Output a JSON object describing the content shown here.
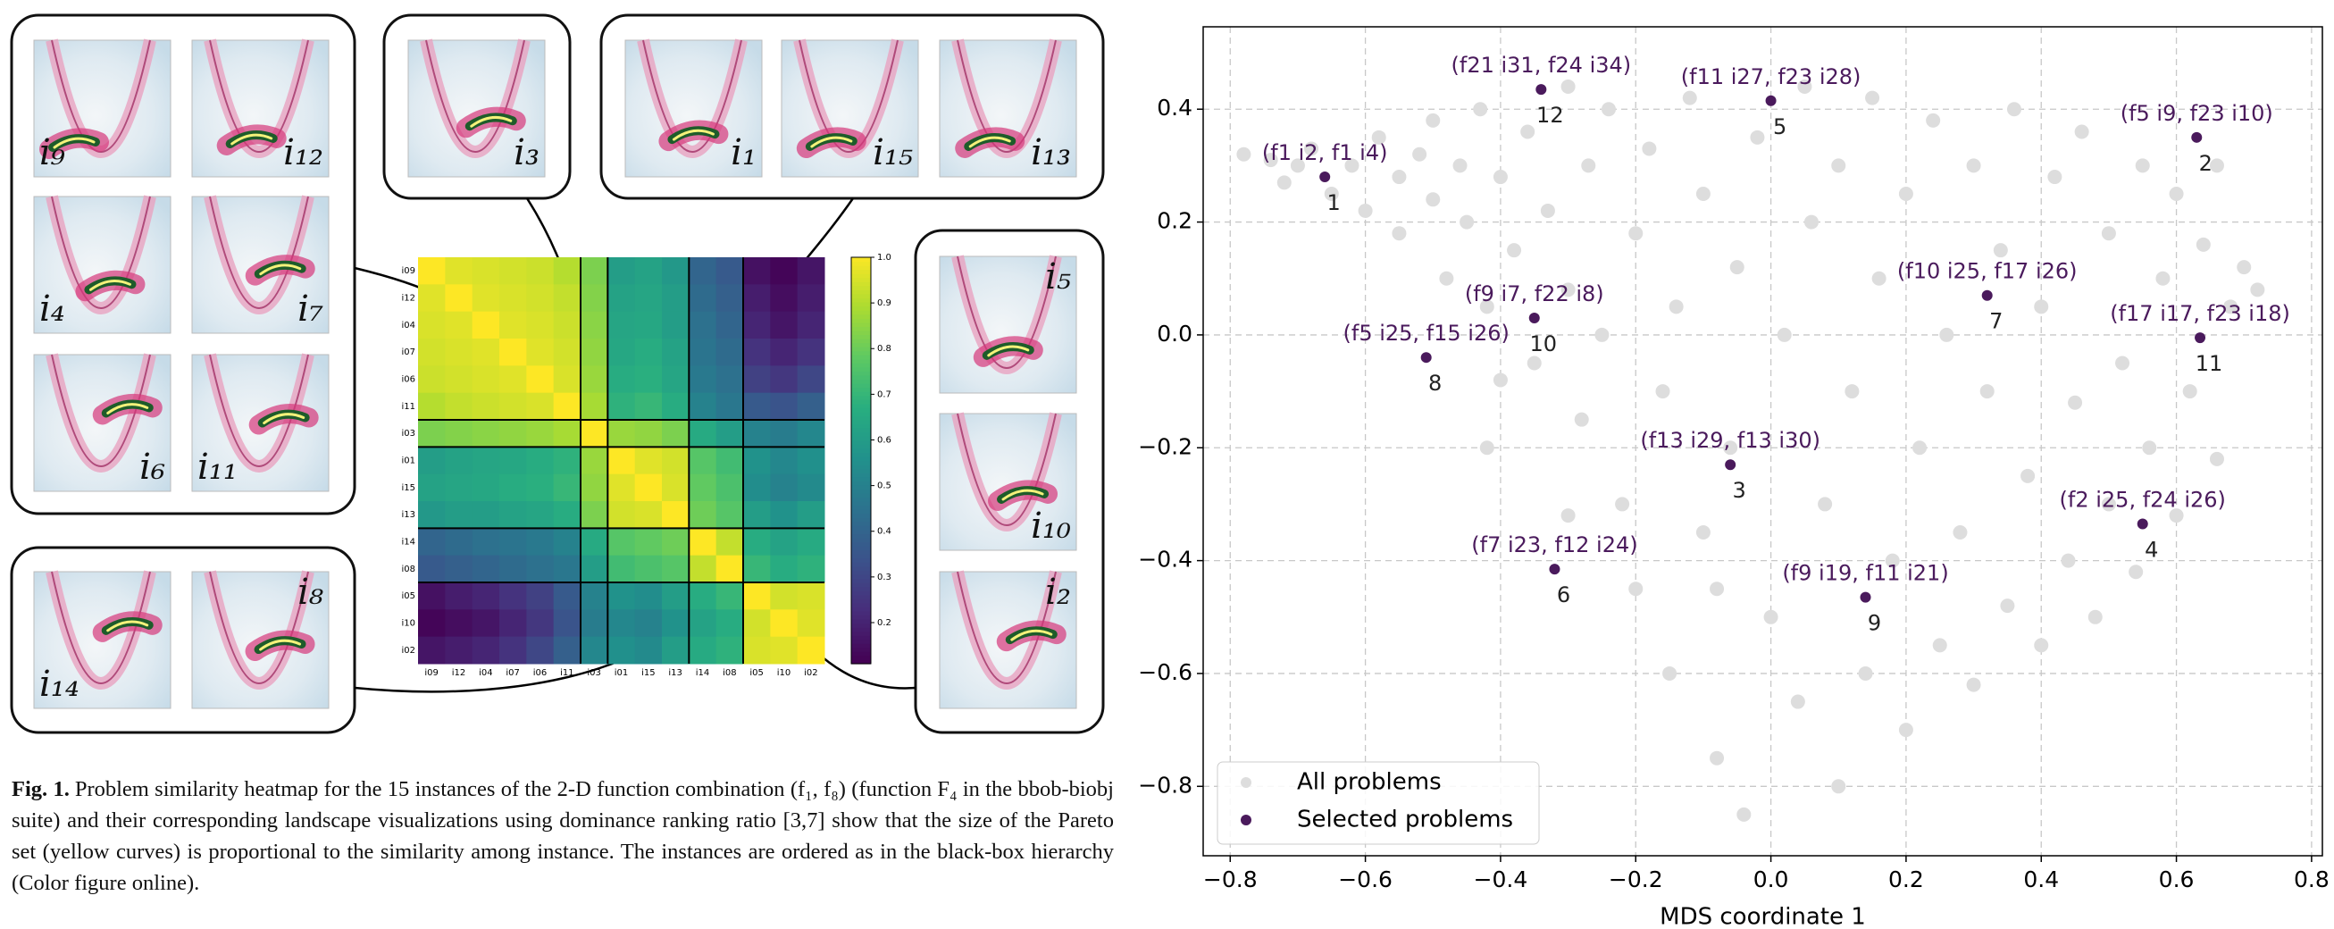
{
  "figure": {
    "heatmap": {
      "labels": [
        "i09",
        "i12",
        "i04",
        "i07",
        "i06",
        "i11",
        "i03",
        "i01",
        "i15",
        "i13",
        "i14",
        "i08",
        "i05",
        "i10",
        "i02"
      ],
      "values": [
        [
          1.0,
          0.96,
          0.95,
          0.94,
          0.93,
          0.9,
          0.82,
          0.6,
          0.62,
          0.58,
          0.4,
          0.36,
          0.15,
          0.12,
          0.16
        ],
        [
          0.96,
          1.0,
          0.96,
          0.95,
          0.94,
          0.92,
          0.83,
          0.62,
          0.63,
          0.6,
          0.42,
          0.38,
          0.18,
          0.14,
          0.18
        ],
        [
          0.95,
          0.96,
          1.0,
          0.96,
          0.95,
          0.93,
          0.84,
          0.63,
          0.64,
          0.6,
          0.44,
          0.4,
          0.2,
          0.16,
          0.2
        ],
        [
          0.94,
          0.95,
          0.96,
          1.0,
          0.96,
          0.94,
          0.85,
          0.64,
          0.66,
          0.62,
          0.45,
          0.42,
          0.24,
          0.2,
          0.24
        ],
        [
          0.93,
          0.94,
          0.95,
          0.96,
          1.0,
          0.95,
          0.86,
          0.66,
          0.67,
          0.63,
          0.47,
          0.44,
          0.28,
          0.25,
          0.3
        ],
        [
          0.9,
          0.92,
          0.93,
          0.94,
          0.95,
          1.0,
          0.88,
          0.68,
          0.7,
          0.66,
          0.5,
          0.46,
          0.36,
          0.34,
          0.38
        ],
        [
          0.82,
          0.83,
          0.84,
          0.85,
          0.86,
          0.88,
          1.0,
          0.86,
          0.85,
          0.82,
          0.65,
          0.6,
          0.5,
          0.48,
          0.52
        ],
        [
          0.6,
          0.62,
          0.63,
          0.64,
          0.66,
          0.68,
          0.86,
          1.0,
          0.96,
          0.94,
          0.76,
          0.72,
          0.56,
          0.52,
          0.55
        ],
        [
          0.62,
          0.63,
          0.64,
          0.66,
          0.67,
          0.7,
          0.85,
          0.96,
          1.0,
          0.95,
          0.78,
          0.74,
          0.54,
          0.5,
          0.53
        ],
        [
          0.58,
          0.6,
          0.6,
          0.62,
          0.63,
          0.66,
          0.82,
          0.94,
          0.95,
          1.0,
          0.8,
          0.76,
          0.6,
          0.56,
          0.6
        ],
        [
          0.4,
          0.42,
          0.44,
          0.45,
          0.47,
          0.5,
          0.65,
          0.76,
          0.78,
          0.8,
          1.0,
          0.92,
          0.66,
          0.62,
          0.65
        ],
        [
          0.36,
          0.38,
          0.4,
          0.42,
          0.44,
          0.46,
          0.6,
          0.72,
          0.74,
          0.76,
          0.92,
          1.0,
          0.7,
          0.66,
          0.68
        ],
        [
          0.15,
          0.18,
          0.2,
          0.24,
          0.28,
          0.36,
          0.5,
          0.56,
          0.54,
          0.6,
          0.66,
          0.7,
          1.0,
          0.94,
          0.95
        ],
        [
          0.12,
          0.14,
          0.16,
          0.2,
          0.25,
          0.34,
          0.48,
          0.52,
          0.5,
          0.56,
          0.62,
          0.66,
          0.94,
          1.0,
          0.96
        ],
        [
          0.16,
          0.18,
          0.2,
          0.24,
          0.3,
          0.38,
          0.52,
          0.55,
          0.53,
          0.6,
          0.65,
          0.68,
          0.95,
          0.96,
          1.0
        ]
      ],
      "clim": [
        0.11,
        1.0
      ],
      "colorbar_ticks": [
        0.2,
        0.3,
        0.4,
        0.5,
        0.6,
        0.7,
        0.8,
        0.9,
        {
          "value": 1.0,
          "label": "1.0"
        }
      ]
    },
    "thumbnails": [
      "i₉",
      "i₁₂",
      "i₄",
      "i₇",
      "i₆",
      "i₁₁",
      "i₃",
      "i₁",
      "i₁₅",
      "i₁₃",
      "i₅",
      "i₁₀",
      "i₂",
      "i₁₄",
      "i₈"
    ],
    "caption": {
      "label": "Fig. 1.",
      "text": "Problem similarity heatmap for the 15 instances of the 2-D function combination (f₁, f₈) (function F₄ in the bbob-biobj suite) and their corresponding landscape visualizations using dominance ranking ratio [3,7] show that the size of the Pareto set (yellow curves) is proportional to the similarity among instance. The instances are ordered as in the black-box hierarchy (Color figure online)."
    }
  },
  "chart_data": {
    "type": "scatter",
    "xlabel": "MDS coordinate 1",
    "xlim": [
      -0.84,
      0.816
    ],
    "ylim": [
      -0.923,
      0.546
    ],
    "xticks": [
      {
        "value": -0.8,
        "label": "−0.8"
      },
      {
        "value": -0.6,
        "label": "−0.6"
      },
      {
        "value": -0.4,
        "label": "−0.4"
      },
      {
        "value": -0.2,
        "label": "−0.2"
      },
      {
        "value": 0,
        "label": "0.0"
      },
      0.2,
      0.4,
      0.6,
      0.8
    ],
    "yticks": [
      {
        "value": -0.8,
        "label": "−0.8"
      },
      {
        "value": -0.6,
        "label": "−0.6"
      },
      {
        "value": -0.4,
        "label": "−0.4"
      },
      {
        "value": -0.2,
        "label": "−0.2"
      },
      {
        "value": 0,
        "label": "0.0"
      },
      0.2,
      0.4
    ],
    "grid": true,
    "legend": "lower left",
    "series": [
      {
        "name": "All problems",
        "color": "#dddddd",
        "x": [
          -0.78,
          -0.74,
          -0.7,
          -0.72,
          -0.68,
          -0.65,
          -0.62,
          -0.6,
          -0.58,
          -0.55,
          -0.55,
          -0.52,
          -0.5,
          -0.5,
          -0.48,
          -0.46,
          -0.45,
          -0.43,
          -0.42,
          -0.4,
          -0.38,
          -0.36,
          -0.35,
          -0.33,
          -0.3,
          -0.3,
          -0.28,
          -0.27,
          -0.25,
          -0.24,
          -0.22,
          -0.2,
          -0.2,
          -0.18,
          -0.16,
          -0.15,
          -0.14,
          -0.12,
          -0.1,
          -0.1,
          -0.08,
          -0.06,
          -0.05,
          -0.04,
          -0.02,
          0.0,
          0.02,
          0.04,
          0.05,
          0.06,
          0.08,
          0.1,
          0.1,
          0.12,
          0.14,
          0.15,
          0.16,
          0.18,
          0.2,
          0.2,
          0.22,
          0.24,
          0.25,
          0.26,
          0.28,
          0.3,
          0.3,
          0.32,
          0.34,
          0.35,
          0.36,
          0.38,
          0.4,
          0.4,
          0.42,
          0.44,
          0.45,
          0.46,
          0.48,
          0.5,
          0.5,
          0.52,
          0.54,
          0.55,
          0.56,
          0.58,
          0.6,
          0.6,
          0.62,
          0.64,
          0.66,
          0.68,
          0.7,
          0.72,
          0.66,
          -0.3,
          -0.42,
          -0.4,
          -0.08
        ],
        "y": [
          0.32,
          0.31,
          0.3,
          0.27,
          0.33,
          0.25,
          0.3,
          0.22,
          0.35,
          0.28,
          0.18,
          0.32,
          0.24,
          0.38,
          0.1,
          0.3,
          0.2,
          0.4,
          0.05,
          0.28,
          0.15,
          0.36,
          -0.05,
          0.22,
          0.44,
          0.08,
          -0.15,
          0.3,
          0.0,
          0.4,
          -0.3,
          0.18,
          -0.45,
          0.33,
          -0.1,
          -0.6,
          0.05,
          0.42,
          -0.35,
          0.25,
          -0.75,
          -0.2,
          0.12,
          -0.85,
          0.35,
          -0.5,
          0.0,
          -0.65,
          0.44,
          0.2,
          -0.3,
          -0.8,
          0.3,
          -0.1,
          -0.6,
          0.42,
          0.1,
          -0.4,
          -0.7,
          0.25,
          -0.2,
          0.38,
          -0.55,
          0.0,
          -0.35,
          0.3,
          -0.62,
          -0.1,
          0.15,
          -0.48,
          0.4,
          -0.25,
          -0.55,
          0.05,
          0.28,
          -0.4,
          -0.12,
          0.36,
          -0.5,
          0.18,
          -0.3,
          -0.05,
          -0.42,
          0.3,
          -0.2,
          0.1,
          -0.32,
          0.25,
          -0.1,
          0.16,
          -0.22,
          0.05,
          0.12,
          0.08,
          0.3,
          -0.32,
          -0.2,
          -0.08,
          -0.45
        ]
      },
      {
        "name": "Selected problems",
        "color": "#4a1a5c",
        "x": [
          -0.66,
          -0.34,
          0.0,
          0.63,
          -0.35,
          -0.51,
          0.32,
          0.635,
          -0.06,
          0.55,
          -0.32,
          0.14
        ],
        "y": [
          0.28,
          0.435,
          0.415,
          0.35,
          0.03,
          -0.04,
          0.07,
          -0.005,
          -0.23,
          -0.335,
          -0.415,
          -0.465
        ],
        "point_labels": [
          "1",
          "12",
          "5",
          "2",
          "10",
          "8",
          "7",
          "11",
          "3",
          "4",
          "6",
          "9"
        ],
        "annotations": [
          "(f1 i2, f1 i4)",
          "(f21 i31, f24 i34)",
          "(f11 i27, f23 i28)",
          "(f5 i9, f23 i10)",
          "(f9 i7, f22 i8)",
          "(f5 i25, f15 i26)",
          "(f10 i25, f17 i26)",
          "(f17 i17, f23 i18)",
          "(f13 i29, f13 i30)",
          "(f2 i25, f24 i26)",
          "(f7 i23, f12 i24)",
          "(f9 i19, f11 i21)"
        ]
      }
    ]
  }
}
